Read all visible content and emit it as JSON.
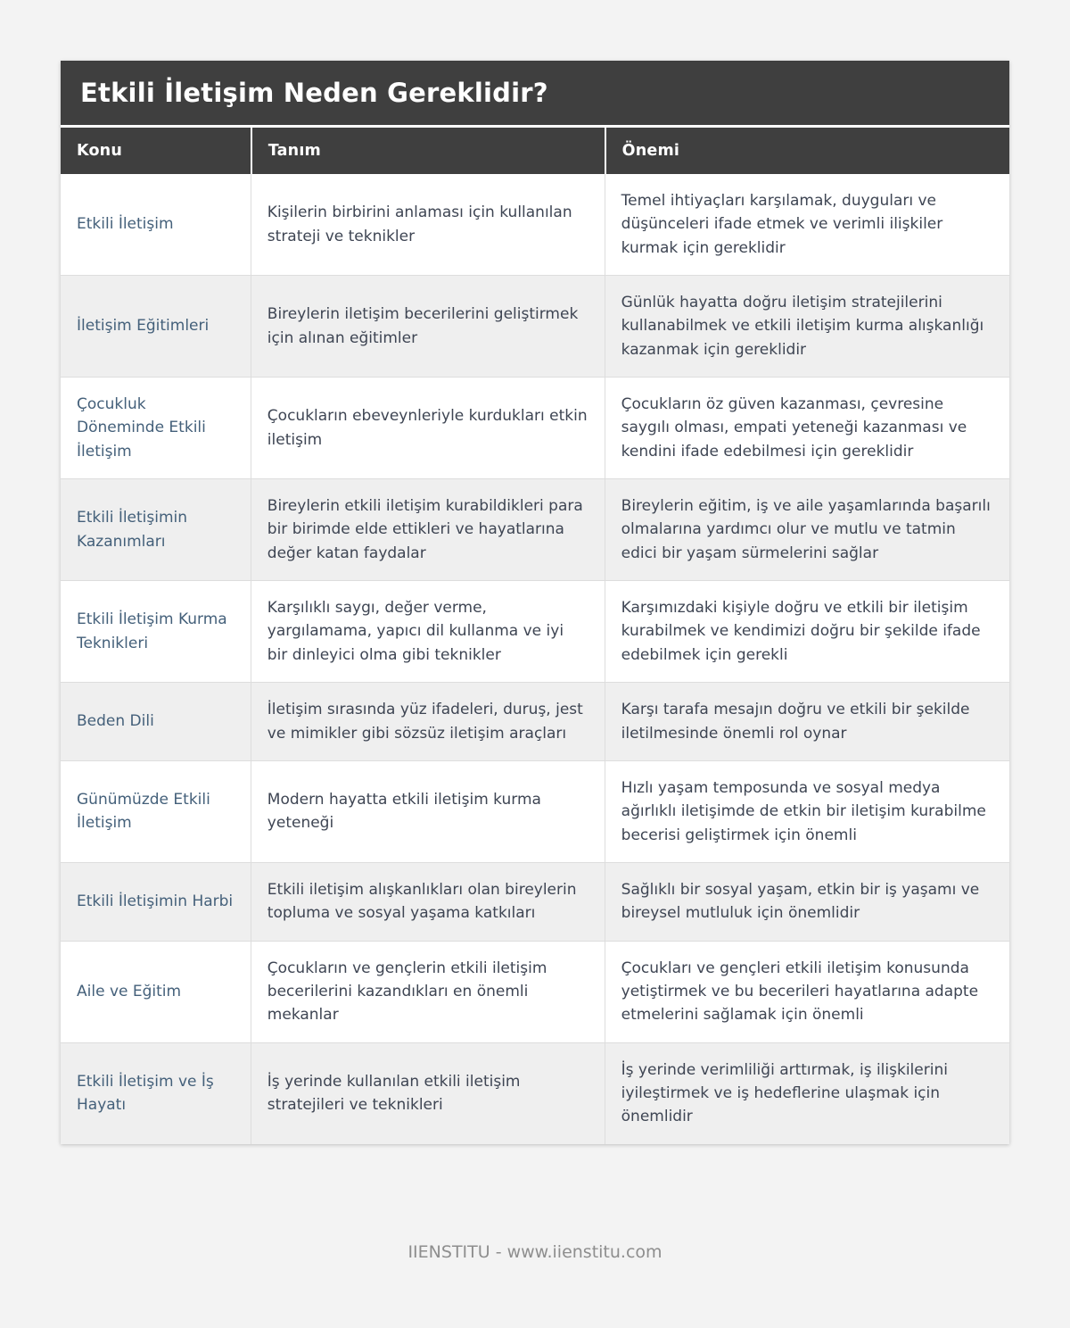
{
  "page": {
    "title": "Etkili İletişim Neden Gereklidir?",
    "footer": "IIENSTITU - www.iienstitu.com"
  },
  "colors": {
    "header_bg": "#3f3f3f",
    "header_text": "#ffffff",
    "page_bg": "#f3f3f3",
    "row_alt_bg": "#efefef",
    "topic_text": "#44607a",
    "body_text": "#3e4553",
    "border": "#dddddd",
    "footer_text": "#8e8e8e"
  },
  "table": {
    "columns": [
      "Konu",
      "Tanım",
      "Önemi"
    ],
    "rows": [
      {
        "konu": "Etkili İletişim",
        "tanim": "Kişilerin birbirini anlaması için kullanılan strateji ve teknikler",
        "onemi": "Temel ihtiyaçları karşılamak, duyguları ve düşünceleri ifade etmek ve verimli ilişkiler kurmak için gereklidir"
      },
      {
        "konu": "İletişim Eğitimleri",
        "tanim": "Bireylerin iletişim becerilerini geliştirmek için alınan eğitimler",
        "onemi": "Günlük hayatta doğru iletişim stratejilerini kullanabilmek ve etkili iletişim kurma alışkanlığı kazanmak için gereklidir"
      },
      {
        "konu": "Çocukluk Döneminde Etkili İletişim",
        "tanim": "Çocukların ebeveynleriyle kurdukları etkin iletişim",
        "onemi": "Çocukların öz güven kazanması, çevresine saygılı olması, empati yeteneği kazanması ve kendini ifade edebilmesi için gereklidir"
      },
      {
        "konu": "Etkili İletişimin Kazanımları",
        "tanim": "Bireylerin etkili iletişim kurabildikleri para bir birimde elde ettikleri ve hayatlarına değer katan faydalar",
        "onemi": "Bireylerin eğitim, iş ve aile yaşamlarında başarılı olmalarına yardımcı olur ve mutlu ve tatmin edici bir yaşam sürmelerini sağlar"
      },
      {
        "konu": "Etkili İletişim Kurma Teknikleri",
        "tanim": "Karşılıklı saygı, değer verme, yargılamama, yapıcı dil kullanma ve iyi bir dinleyici olma gibi teknikler",
        "onemi": "Karşımızdaki kişiyle doğru ve etkili bir iletişim kurabilmek ve kendimizi doğru bir şekilde ifade edebilmek için gerekli"
      },
      {
        "konu": "Beden Dili",
        "tanim": "İletişim sırasında yüz ifadeleri, duruş, jest ve mimikler gibi sözsüz iletişim araçları",
        "onemi": "Karşı tarafa mesajın doğru ve etkili bir şekilde iletilmesinde önemli rol oynar"
      },
      {
        "konu": "Günümüzde Etkili İletişim",
        "tanim": "Modern hayatta etkili iletişim kurma yeteneği",
        "onemi": "Hızlı yaşam temposunda ve sosyal medya ağırlıklı iletişimde de etkin bir iletişim kurabilme becerisi geliştirmek için önemli"
      },
      {
        "konu": "Etkili İletişimin Harbi",
        "tanim": "Etkili iletişim alışkanlıkları olan bireylerin topluma ve sosyal yaşama katkıları",
        "onemi": "Sağlıklı bir sosyal yaşam, etkin bir iş yaşamı ve bireysel mutluluk için önemlidir"
      },
      {
        "konu": "Aile ve Eğitim",
        "tanim": "Çocukların ve gençlerin etkili iletişim becerilerini kazandıkları en önemli mekanlar",
        "onemi": "Çocukları ve gençleri etkili iletişim konusunda yetiştirmek ve bu becerileri hayatlarına adapte etmelerini sağlamak için önemli"
      },
      {
        "konu": "Etkili İletişim ve İş Hayatı",
        "tanim": "İş yerinde kullanılan etkili iletişim stratejileri ve teknikleri",
        "onemi": "İş yerinde verimliliği arttırmak, iş ilişkilerini iyileştirmek ve iş hedeflerine ulaşmak için önemlidir"
      }
    ]
  }
}
